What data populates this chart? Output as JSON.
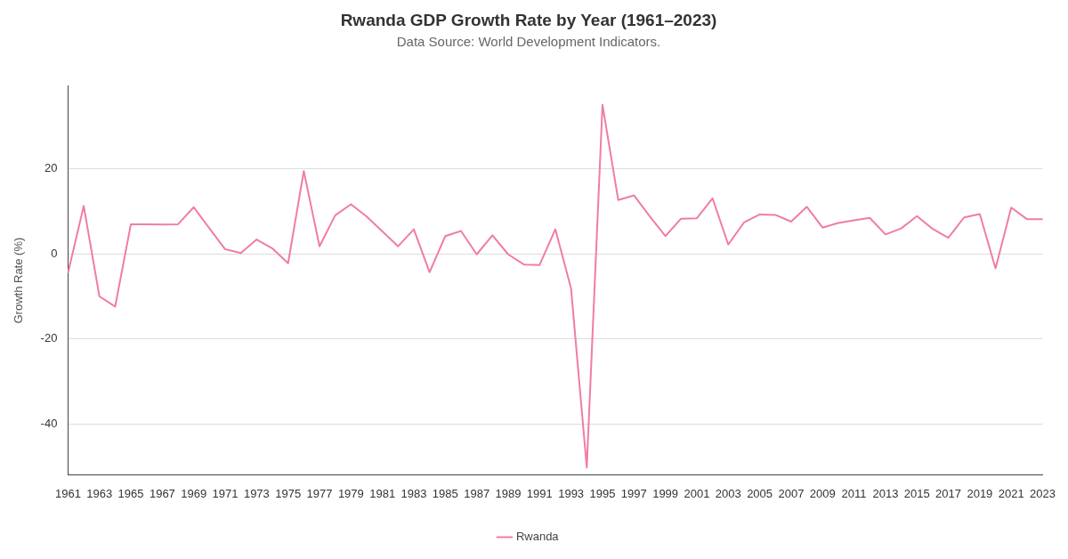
{
  "chart_data": {
    "type": "line",
    "title": "Rwanda GDP Growth Rate by Year (1961–2023)",
    "subtitle": "Data Source: World Development Indicators.",
    "ylabel": "Growth Rate (%)",
    "categories": [
      "1961",
      null,
      "1963",
      null,
      "1965",
      null,
      "1967",
      null,
      "1969",
      null,
      "1971",
      null,
      "1973",
      null,
      "1975",
      null,
      "1977",
      null,
      "1979",
      null,
      "1981",
      null,
      "1983",
      null,
      "1985",
      null,
      "1987",
      null,
      "1989",
      null,
      "1991",
      null,
      "1993",
      null,
      "1995",
      null,
      "1997",
      null,
      "1999",
      null,
      "2001",
      null,
      "2003",
      null,
      "2005",
      null,
      "2007",
      null,
      "2009",
      null,
      "2011",
      null,
      "2013",
      null,
      "2015",
      null,
      "2017",
      null,
      "2019",
      null,
      "2021",
      null,
      "2023"
    ],
    "series": [
      {
        "name": "Rwanda",
        "color": "#f07ca8",
        "values": [
          -4.5,
          11.3,
          -10.0,
          -12.4,
          7.0,
          7.0,
          6.9,
          7.0,
          11.0,
          6.0,
          1.1,
          0.2,
          3.4,
          1.3,
          -2.2,
          19.5,
          1.8,
          9.1,
          11.7,
          8.8,
          5.3,
          1.8,
          5.8,
          -4.3,
          4.2,
          5.4,
          -0.1,
          4.4,
          -0.1,
          -2.5,
          -2.6,
          5.8,
          -8.1,
          -50.3,
          35.1,
          12.7,
          13.8,
          8.9,
          4.2,
          8.3,
          8.4,
          13.1,
          2.2,
          7.4,
          9.3,
          9.2,
          7.6,
          11.1,
          6.2,
          7.3,
          7.9,
          8.5,
          4.6,
          6.0,
          8.9,
          5.9,
          3.8,
          8.6,
          9.4,
          -3.4,
          10.9,
          8.2,
          8.2
        ]
      }
    ],
    "ylim": [
      -52,
      39.5
    ],
    "yticks": [
      -40,
      -20,
      0,
      20
    ],
    "grid": "y",
    "legend": "bottom",
    "marker": "none",
    "line_style": "solid"
  }
}
